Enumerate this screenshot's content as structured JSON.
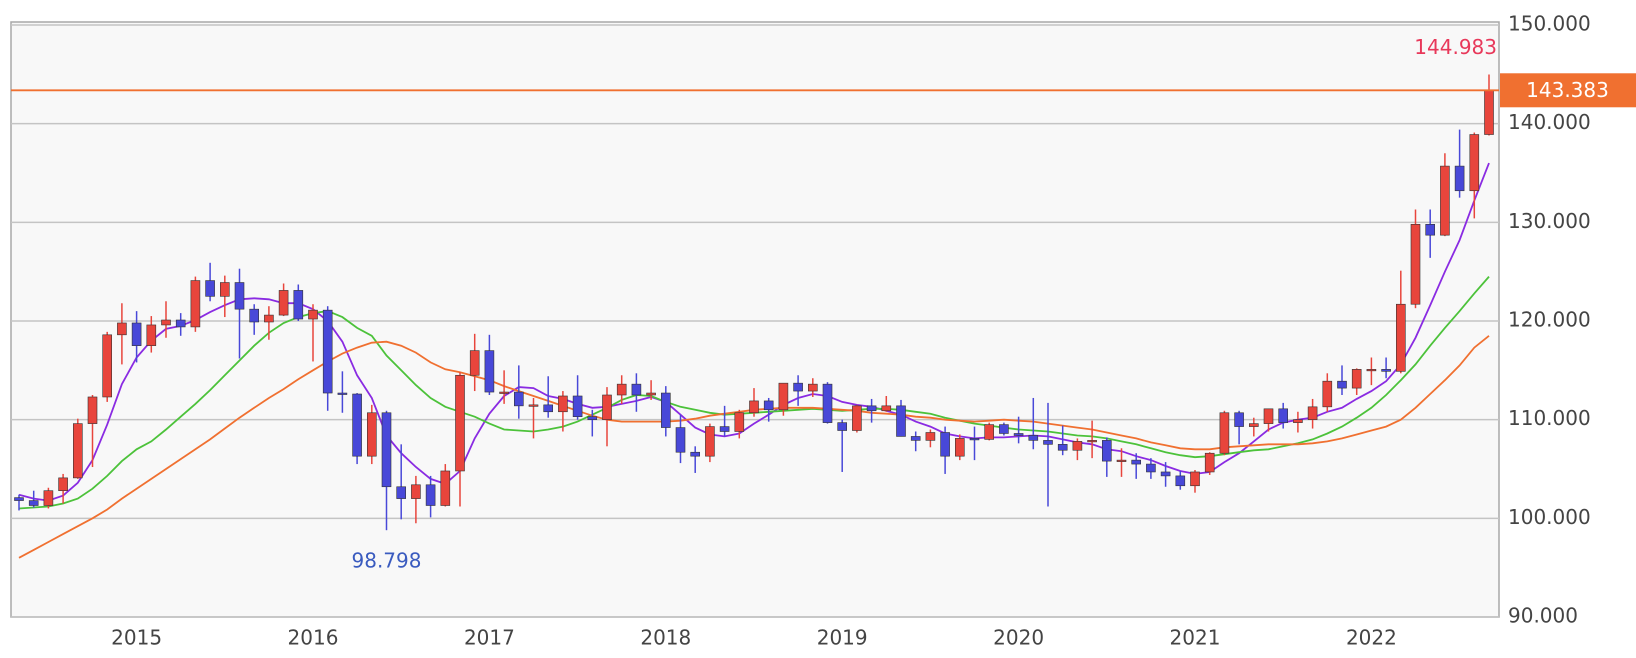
{
  "chart_data": {
    "type": "candlestick",
    "categories": [
      null,
      null,
      null,
      null,
      null,
      null,
      null,
      null,
      "2015",
      null,
      null,
      null,
      null,
      null,
      null,
      null,
      null,
      null,
      null,
      null,
      "2016",
      null,
      null,
      null,
      null,
      null,
      null,
      null,
      null,
      null,
      null,
      null,
      "2017",
      null,
      null,
      null,
      null,
      null,
      null,
      null,
      null,
      null,
      null,
      null,
      "2018",
      null,
      null,
      null,
      null,
      null,
      null,
      null,
      null,
      null,
      null,
      null,
      "2019",
      null,
      null,
      null,
      null,
      null,
      null,
      null,
      null,
      null,
      null,
      null,
      "2020",
      null,
      null,
      null,
      null,
      null,
      null,
      null,
      null,
      null,
      null,
      null,
      "2021",
      null,
      null,
      null,
      null,
      null,
      null,
      null,
      null,
      null,
      null,
      null,
      "2022",
      null,
      null,
      null,
      null,
      null,
      null,
      null,
      null
    ],
    "open": [
      102.1,
      101.8,
      101.3,
      102.8,
      104.1,
      109.6,
      112.3,
      118.6,
      119.8,
      117.5,
      119.6,
      120.1,
      119.4,
      124.1,
      122.5,
      123.9,
      121.2,
      119.9,
      120.6,
      123.1,
      120.2,
      121.1,
      112.7,
      112.6,
      106.3,
      110.7,
      103.2,
      102.0,
      103.4,
      101.3,
      104.8,
      114.5,
      117.0,
      112.8,
      112.8,
      111.4,
      111.5,
      110.8,
      112.4,
      110.3,
      110.0,
      112.5,
      113.6,
      112.5,
      112.7,
      109.2,
      106.7,
      106.3,
      109.3,
      108.8,
      110.7,
      111.9,
      111.0,
      113.7,
      112.9,
      113.6,
      109.7,
      108.9,
      111.4,
      110.9,
      111.4,
      108.3,
      107.9,
      108.7,
      106.3,
      108.1,
      108.0,
      109.5,
      108.6,
      108.4,
      107.9,
      107.5,
      106.9,
      107.8,
      107.9,
      105.8,
      105.9,
      105.5,
      104.7,
      104.3,
      103.3,
      104.7,
      106.6,
      110.7,
      109.3,
      109.6,
      111.1,
      109.7,
      110.0,
      111.3,
      113.9,
      113.2,
      115.1,
      115.1,
      114.9,
      121.7,
      129.8,
      128.7,
      135.7,
      133.2,
      138.9
    ],
    "high": [
      102.4,
      102.8,
      103.1,
      104.5,
      110.1,
      112.5,
      118.9,
      121.8,
      121.0,
      120.5,
      122.0,
      120.8,
      124.5,
      125.9,
      124.6,
      125.3,
      121.7,
      121.5,
      123.8,
      123.7,
      121.7,
      121.5,
      114.9,
      112.7,
      111.5,
      110.9,
      107.5,
      104.3,
      104.3,
      105.5,
      114.8,
      118.7,
      118.6,
      115.0,
      115.5,
      112.2,
      114.4,
      112.9,
      114.5,
      111.0,
      113.3,
      114.5,
      114.7,
      114.0,
      113.4,
      110.5,
      107.3,
      109.6,
      111.4,
      111.0,
      113.2,
      112.2,
      113.7,
      114.5,
      114.2,
      113.8,
      110.0,
      111.5,
      112.1,
      112.4,
      112.0,
      108.8,
      109.0,
      109.3,
      108.5,
      109.3,
      109.7,
      109.7,
      110.3,
      112.2,
      111.7,
      109.4,
      108.1,
      109.9,
      108.2,
      107.1,
      106.6,
      106.1,
      105.7,
      104.8,
      104.9,
      106.7,
      110.9,
      110.9,
      110.2,
      111.1,
      111.7,
      110.8,
      112.1,
      114.7,
      115.5,
      115.2,
      116.3,
      116.3,
      125.1,
      131.3,
      131.3,
      137.0,
      139.4,
      139.1,
      144.983
    ],
    "low": [
      100.8,
      101.1,
      101.0,
      101.5,
      104.0,
      105.2,
      111.8,
      115.6,
      115.8,
      116.8,
      118.3,
      118.5,
      118.9,
      122.0,
      120.4,
      116.2,
      118.6,
      118.1,
      120.5,
      120.0,
      115.9,
      110.9,
      110.7,
      105.5,
      105.5,
      98.798,
      99.9,
      99.5,
      100.1,
      101.2,
      101.2,
      112.9,
      112.5,
      111.6,
      110.1,
      108.1,
      110.2,
      108.8,
      110.0,
      108.3,
      107.3,
      111.6,
      110.8,
      112.0,
      108.3,
      105.6,
      104.6,
      105.7,
      108.3,
      108.1,
      110.3,
      109.8,
      110.4,
      111.4,
      112.3,
      109.6,
      104.7,
      108.7,
      109.7,
      110.8,
      108.3,
      106.8,
      107.2,
      104.5,
      105.9,
      105.9,
      107.9,
      108.4,
      107.6,
      107.0,
      101.2,
      106.4,
      105.9,
      106.1,
      104.2,
      104.2,
      104.0,
      104.0,
      103.2,
      102.9,
      102.6,
      104.4,
      106.4,
      107.5,
      108.3,
      108.8,
      109.1,
      108.7,
      109.1,
      110.8,
      112.5,
      112.5,
      113.5,
      114.2,
      114.7,
      121.3,
      126.4,
      128.6,
      132.5,
      130.4,
      138.8
    ],
    "close": [
      101.8,
      101.3,
      102.8,
      104.1,
      109.6,
      112.3,
      118.6,
      119.8,
      117.5,
      119.6,
      120.1,
      119.4,
      124.1,
      122.5,
      123.9,
      121.2,
      119.9,
      120.6,
      123.1,
      120.2,
      121.1,
      112.7,
      112.6,
      106.3,
      110.7,
      103.2,
      102.0,
      103.4,
      101.3,
      104.8,
      114.5,
      117.0,
      112.8,
      112.8,
      111.4,
      111.5,
      110.8,
      112.4,
      110.3,
      110.0,
      112.5,
      113.6,
      112.5,
      112.7,
      109.2,
      106.7,
      106.3,
      109.3,
      108.8,
      110.7,
      111.9,
      111.0,
      113.7,
      112.9,
      113.6,
      109.7,
      108.9,
      111.4,
      110.9,
      111.4,
      108.3,
      107.9,
      108.7,
      106.3,
      108.1,
      108.0,
      109.5,
      108.6,
      108.4,
      107.9,
      107.5,
      106.9,
      107.8,
      107.9,
      105.8,
      105.9,
      105.5,
      104.7,
      104.3,
      103.3,
      104.7,
      106.6,
      110.7,
      109.3,
      109.6,
      111.1,
      109.7,
      110.0,
      111.3,
      113.9,
      113.2,
      115.1,
      115.1,
      114.9,
      121.7,
      129.8,
      128.7,
      135.7,
      133.2,
      138.9,
      143.383
    ],
    "up_color": "#e8453c",
    "down_color": "#4848d8",
    "lines": [
      {
        "color": "#8a2be2",
        "values": [
          102.4,
          102.0,
          101.8,
          102.3,
          103.6,
          105.9,
          109.5,
          113.6,
          116.3,
          118.0,
          119.2,
          119.5,
          120.1,
          120.9,
          121.6,
          122.2,
          122.3,
          122.2,
          121.8,
          121.8,
          121.2,
          120.0,
          117.9,
          114.5,
          112.2,
          108.4,
          106.6,
          105.2,
          104.0,
          103.5,
          104.8,
          108.1,
          110.6,
          112.4,
          113.3,
          113.2,
          112.4,
          112.1,
          111.6,
          111.2,
          111.3,
          111.6,
          111.9,
          112.3,
          111.8,
          110.5,
          109.2,
          108.5,
          108.3,
          108.6,
          109.6,
          110.5,
          111.5,
          112.2,
          112.6,
          112.4,
          111.8,
          111.5,
          111.3,
          110.9,
          110.5,
          109.8,
          109.3,
          108.6,
          108.3,
          108.1,
          108.2,
          108.2,
          108.3,
          108.4,
          108.3,
          108.0,
          107.7,
          107.5,
          107.0,
          106.8,
          106.3,
          105.9,
          105.3,
          104.8,
          104.5,
          104.7,
          105.7,
          106.6,
          107.8,
          109.0,
          109.7,
          110.0,
          110.2,
          110.8,
          111.2,
          112.1,
          112.9,
          113.9,
          115.6,
          118.3,
          121.6,
          125.0,
          128.2,
          132.2,
          136.0
        ]
      },
      {
        "color": "#4cc23a",
        "values": [
          101.0,
          101.1,
          101.2,
          101.5,
          102.0,
          103.0,
          104.3,
          105.8,
          107.0,
          107.8,
          109.0,
          110.3,
          111.6,
          113.0,
          114.5,
          116.0,
          117.5,
          118.8,
          119.8,
          120.4,
          120.8,
          121.0,
          120.4,
          119.3,
          118.5,
          116.5,
          115.0,
          113.5,
          112.2,
          111.3,
          110.8,
          110.3,
          109.6,
          109.0,
          108.9,
          108.8,
          109.0,
          109.3,
          109.8,
          110.5,
          111.2,
          112.0,
          112.5,
          112.4,
          111.8,
          111.3,
          111.0,
          110.7,
          110.5,
          110.6,
          110.7,
          110.8,
          110.9,
          111.0,
          111.1,
          111.0,
          110.9,
          111.0,
          111.1,
          111.1,
          111.0,
          110.8,
          110.6,
          110.2,
          109.9,
          109.6,
          109.4,
          109.2,
          109.0,
          108.9,
          108.8,
          108.6,
          108.4,
          108.3,
          108.1,
          107.8,
          107.5,
          107.1,
          106.7,
          106.4,
          106.2,
          106.3,
          106.5,
          106.7,
          106.9,
          107.0,
          107.3,
          107.6,
          108.0,
          108.6,
          109.3,
          110.2,
          111.2,
          112.5,
          114.0,
          115.6,
          117.5,
          119.3,
          121.0,
          122.8,
          124.5
        ]
      },
      {
        "color": "#f07030",
        "values": [
          96.0,
          96.8,
          97.6,
          98.4,
          99.2,
          100.0,
          100.9,
          102.0,
          103.0,
          104.0,
          105.0,
          106.0,
          107.0,
          108.0,
          109.1,
          110.2,
          111.2,
          112.2,
          113.1,
          114.1,
          115.0,
          115.9,
          116.7,
          117.3,
          117.8,
          117.9,
          117.5,
          116.8,
          115.8,
          115.1,
          114.8,
          114.4,
          114.0,
          113.4,
          112.9,
          112.4,
          111.9,
          111.4,
          110.9,
          110.4,
          110.0,
          109.8,
          109.8,
          109.8,
          109.8,
          109.9,
          110.1,
          110.4,
          110.6,
          110.8,
          111.0,
          111.1,
          111.2,
          111.2,
          111.2,
          111.1,
          111.0,
          110.9,
          110.7,
          110.6,
          110.5,
          110.3,
          110.2,
          110.0,
          109.9,
          109.8,
          109.9,
          110.0,
          109.9,
          109.8,
          109.6,
          109.4,
          109.2,
          109.0,
          108.7,
          108.4,
          108.1,
          107.7,
          107.4,
          107.1,
          107.0,
          107.0,
          107.2,
          107.3,
          107.4,
          107.5,
          107.5,
          107.5,
          107.6,
          107.8,
          108.1,
          108.5,
          108.9,
          109.3,
          110.0,
          111.2,
          112.6,
          114.0,
          115.5,
          117.3,
          118.5
        ]
      }
    ],
    "ylim": [
      90,
      150
    ],
    "yticks": [
      {
        "value": 90,
        "label": "90.000"
      },
      {
        "value": 100,
        "label": "100.000"
      },
      {
        "value": 110,
        "label": "110.000"
      },
      {
        "value": 120,
        "label": "120.000"
      },
      {
        "value": 130,
        "label": "130.000"
      },
      {
        "value": 140,
        "label": "140.000"
      },
      {
        "value": 150,
        "label": "150.000"
      }
    ],
    "grid": true,
    "last_price_color": "#f07030",
    "high_label_color": "#e8385a",
    "low_label_color": "#3a5bbf"
  }
}
